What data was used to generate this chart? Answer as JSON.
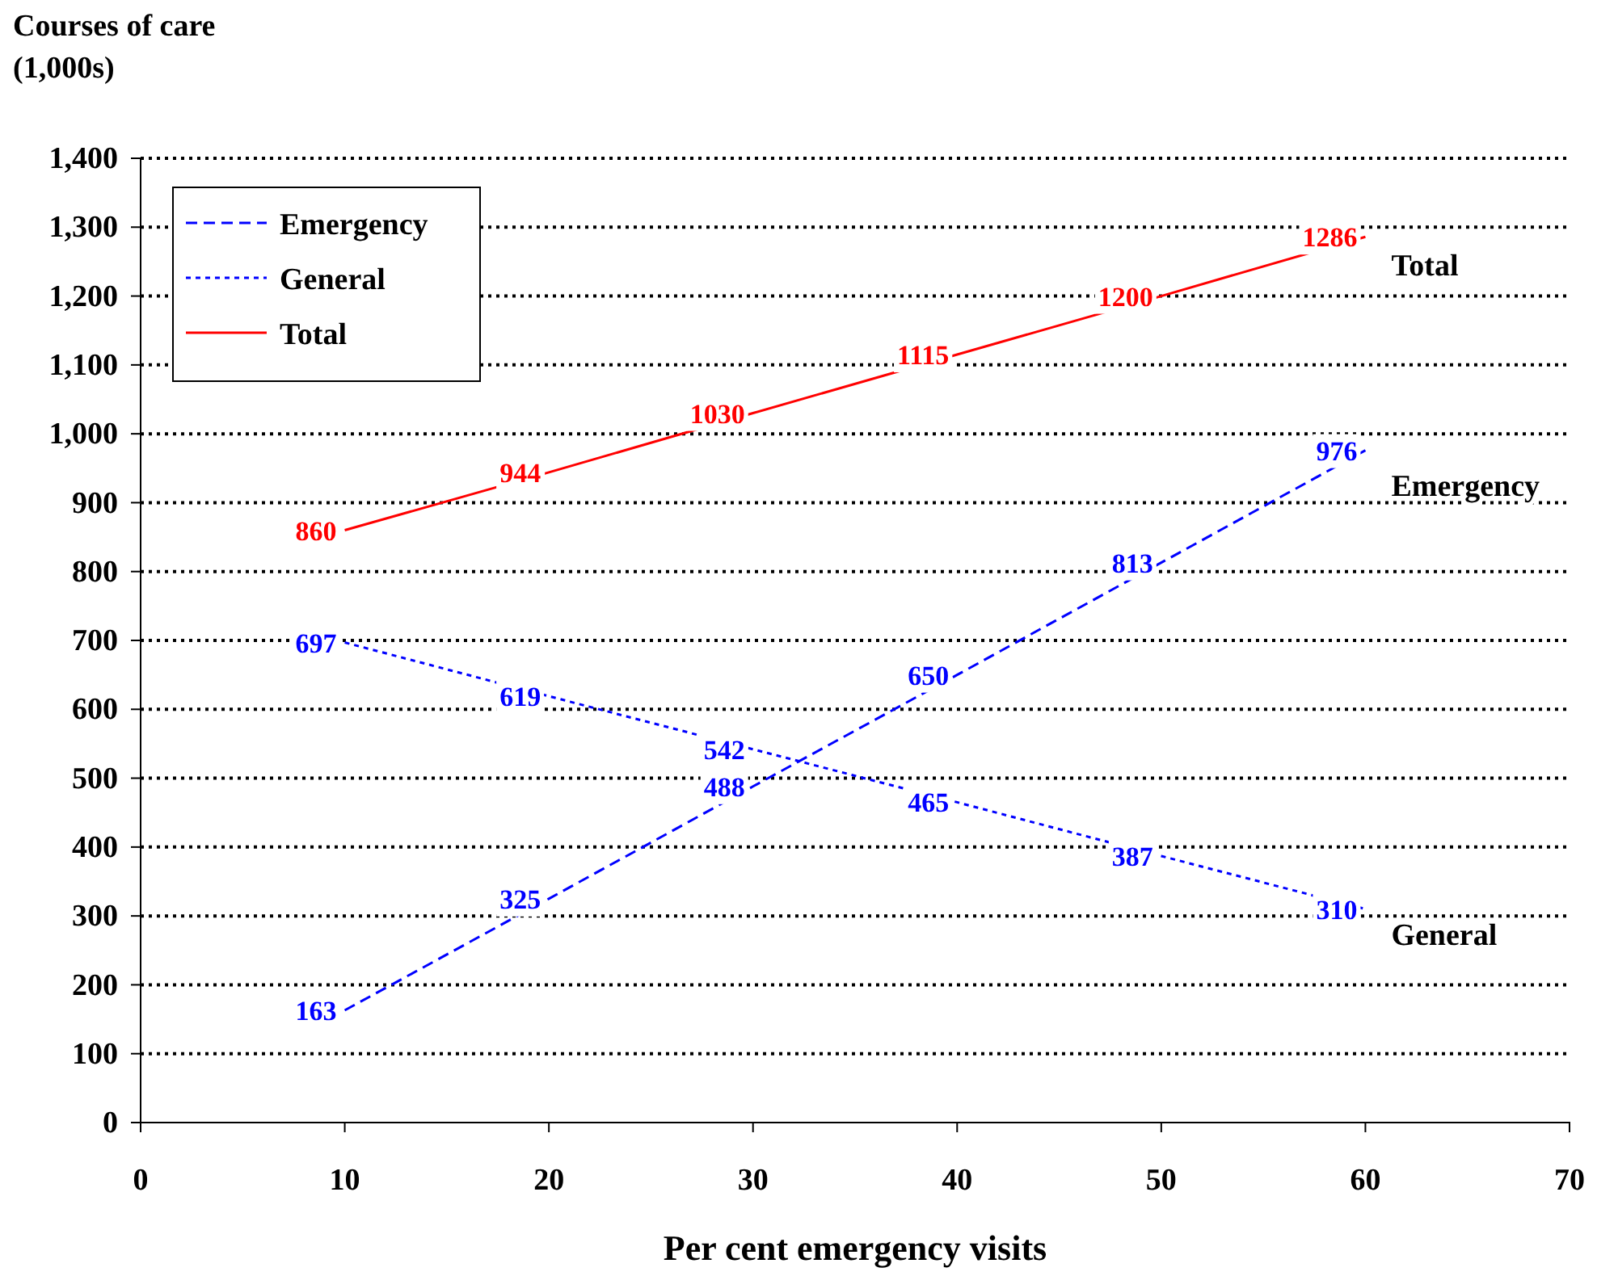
{
  "chart_data": {
    "type": "line",
    "xlabel": "Per cent emergency visits",
    "ylabel": "Courses of care (1,000s)",
    "x": [
      10,
      20,
      30,
      40,
      50,
      60
    ],
    "series": [
      {
        "name": "Emergency",
        "color": "#0000ff",
        "line_style": "dashed",
        "values": [
          163,
          325,
          488,
          650,
          813,
          976
        ]
      },
      {
        "name": "General",
        "color": "#0000ff",
        "line_style": "dotted",
        "values": [
          697,
          619,
          542,
          465,
          387,
          310
        ]
      },
      {
        "name": "Total",
        "color": "#ff0000",
        "line_style": "solid",
        "values": [
          860,
          944,
          1030,
          1115,
          1200,
          1286
        ]
      }
    ],
    "xlim": [
      0,
      70
    ],
    "xticks": [
      0,
      10,
      20,
      30,
      40,
      50,
      60,
      70
    ],
    "ylim": [
      0,
      1400
    ],
    "yticks": [
      0,
      100,
      200,
      300,
      400,
      500,
      600,
      700,
      800,
      900,
      {
        "value": 1000,
        "label": "1,000"
      },
      {
        "value": 1100,
        "label": "1,100"
      },
      {
        "value": 1200,
        "label": "1,200"
      },
      {
        "value": 1300,
        "label": "1,300"
      },
      {
        "value": 1400,
        "label": "1,400"
      }
    ],
    "grid": "y",
    "legend": "top left",
    "data_labels": true,
    "marker": "none"
  }
}
